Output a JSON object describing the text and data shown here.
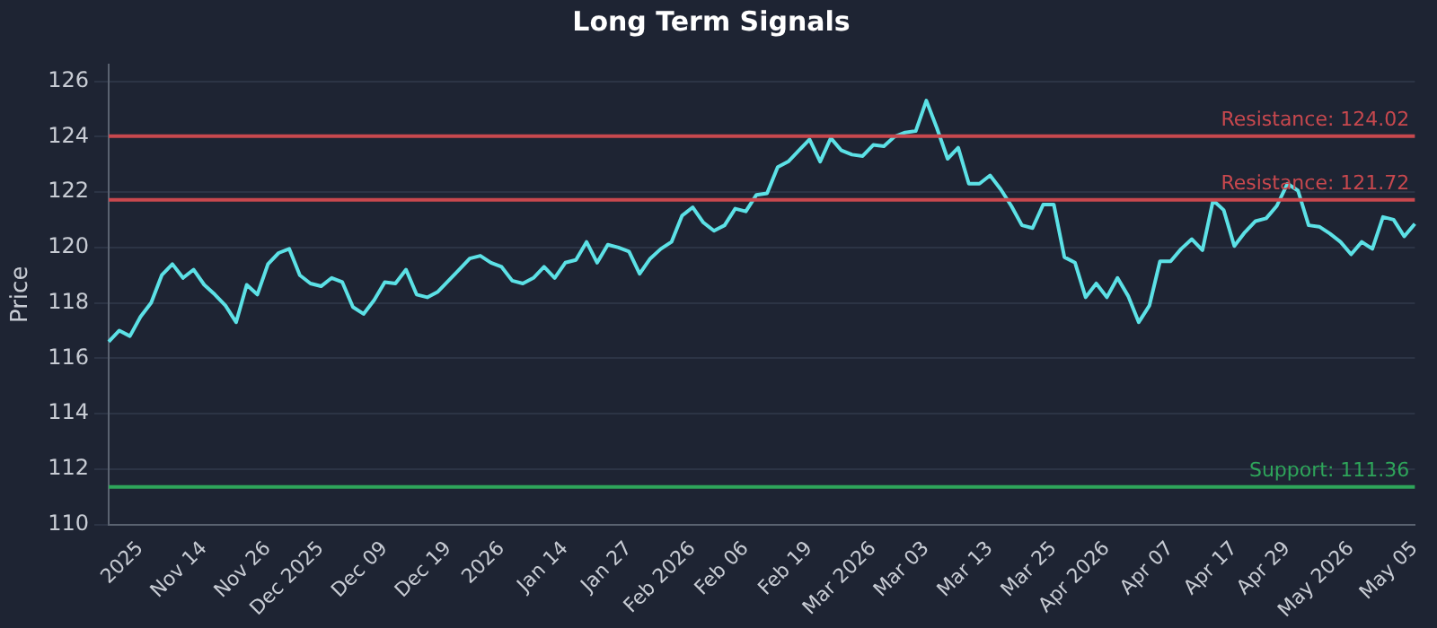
{
  "chart_data": {
    "type": "line",
    "title": "Long Term Signals",
    "ylabel": "Price",
    "categories": [
      null,
      null,
      null,
      "2025",
      null,
      null,
      null,
      null,
      null,
      "Nov 14",
      null,
      null,
      null,
      null,
      null,
      "Nov 26",
      null,
      null,
      null,
      null,
      "Dec 2025",
      null,
      null,
      null,
      null,
      null,
      "Dec 09",
      null,
      null,
      null,
      null,
      null,
      "Dec 19",
      null,
      null,
      null,
      null,
      "2026",
      null,
      null,
      null,
      null,
      null,
      "Jan 14",
      null,
      null,
      null,
      null,
      null,
      "Jan 27",
      null,
      null,
      null,
      null,
      null,
      "Feb 2026",
      null,
      null,
      null,
      null,
      "Feb 06",
      null,
      null,
      null,
      null,
      null,
      "Feb 19",
      null,
      null,
      null,
      null,
      null,
      "Mar 2026",
      null,
      null,
      null,
      null,
      "Mar 03",
      null,
      null,
      null,
      null,
      null,
      "Mar 13",
      null,
      null,
      null,
      null,
      null,
      "Mar 25",
      null,
      null,
      null,
      null,
      "Apr 2026",
      null,
      null,
      null,
      null,
      null,
      "Apr 07",
      null,
      null,
      null,
      null,
      null,
      "Apr 17",
      null,
      null,
      null,
      null,
      "Apr 29",
      null,
      null,
      null,
      null,
      null,
      "May 2026",
      null,
      null,
      null,
      null,
      null,
      "May 05"
    ],
    "series": [
      {
        "color": "#5ce1e6",
        "values": [
          116.6,
          117.0,
          116.8,
          117.5,
          118.0,
          119.0,
          119.4,
          118.9,
          119.2,
          118.65,
          118.3,
          117.9,
          117.3,
          118.65,
          118.3,
          119.4,
          119.8,
          119.95,
          119.0,
          118.7,
          118.6,
          118.9,
          118.75,
          117.85,
          117.6,
          118.1,
          118.75,
          118.7,
          119.2,
          118.3,
          118.2,
          118.4,
          118.8,
          119.2,
          119.6,
          119.7,
          119.45,
          119.3,
          118.8,
          118.7,
          118.9,
          119.3,
          118.9,
          119.45,
          119.55,
          120.2,
          119.45,
          120.1,
          120.0,
          119.85,
          119.05,
          119.6,
          119.95,
          120.2,
          121.15,
          121.45,
          120.9,
          120.6,
          120.8,
          121.4,
          121.3,
          121.9,
          121.95,
          122.9,
          123.1,
          123.5,
          123.9,
          123.1,
          123.95,
          123.5,
          123.35,
          123.3,
          123.7,
          123.65,
          124.0,
          124.15,
          124.2,
          125.3,
          124.3,
          123.2,
          123.6,
          122.3,
          122.3,
          122.6,
          122.1,
          121.5,
          120.8,
          120.7,
          121.55,
          121.55,
          119.65,
          119.45,
          118.2,
          118.7,
          118.2,
          118.9,
          118.25,
          117.3,
          117.9,
          119.5,
          119.5,
          119.95,
          120.3,
          119.9,
          121.7,
          121.35,
          120.05,
          120.55,
          120.95,
          121.05,
          121.5,
          122.3,
          122.05,
          120.8,
          120.75,
          120.5,
          120.2,
          119.75,
          120.2,
          119.95,
          121.1,
          121.0,
          120.4,
          120.85
        ]
      }
    ],
    "ylim": [
      110,
      126.6
    ],
    "yticks": [
      110,
      112,
      114,
      116,
      118,
      120,
      122,
      124,
      126
    ],
    "grid": "y",
    "legend": false,
    "marker": "none",
    "line_style": "solid",
    "ref_lines": [
      {
        "axis": "y",
        "value": 124.02,
        "label": "Resistance: 124.02",
        "color": "#c8484e"
      },
      {
        "axis": "y",
        "value": 121.72,
        "label": "Resistance: 121.72",
        "color": "#c8484e"
      },
      {
        "axis": "y",
        "value": 111.36,
        "label": "Support: 111.36",
        "color": "#2ea55a"
      }
    ]
  }
}
